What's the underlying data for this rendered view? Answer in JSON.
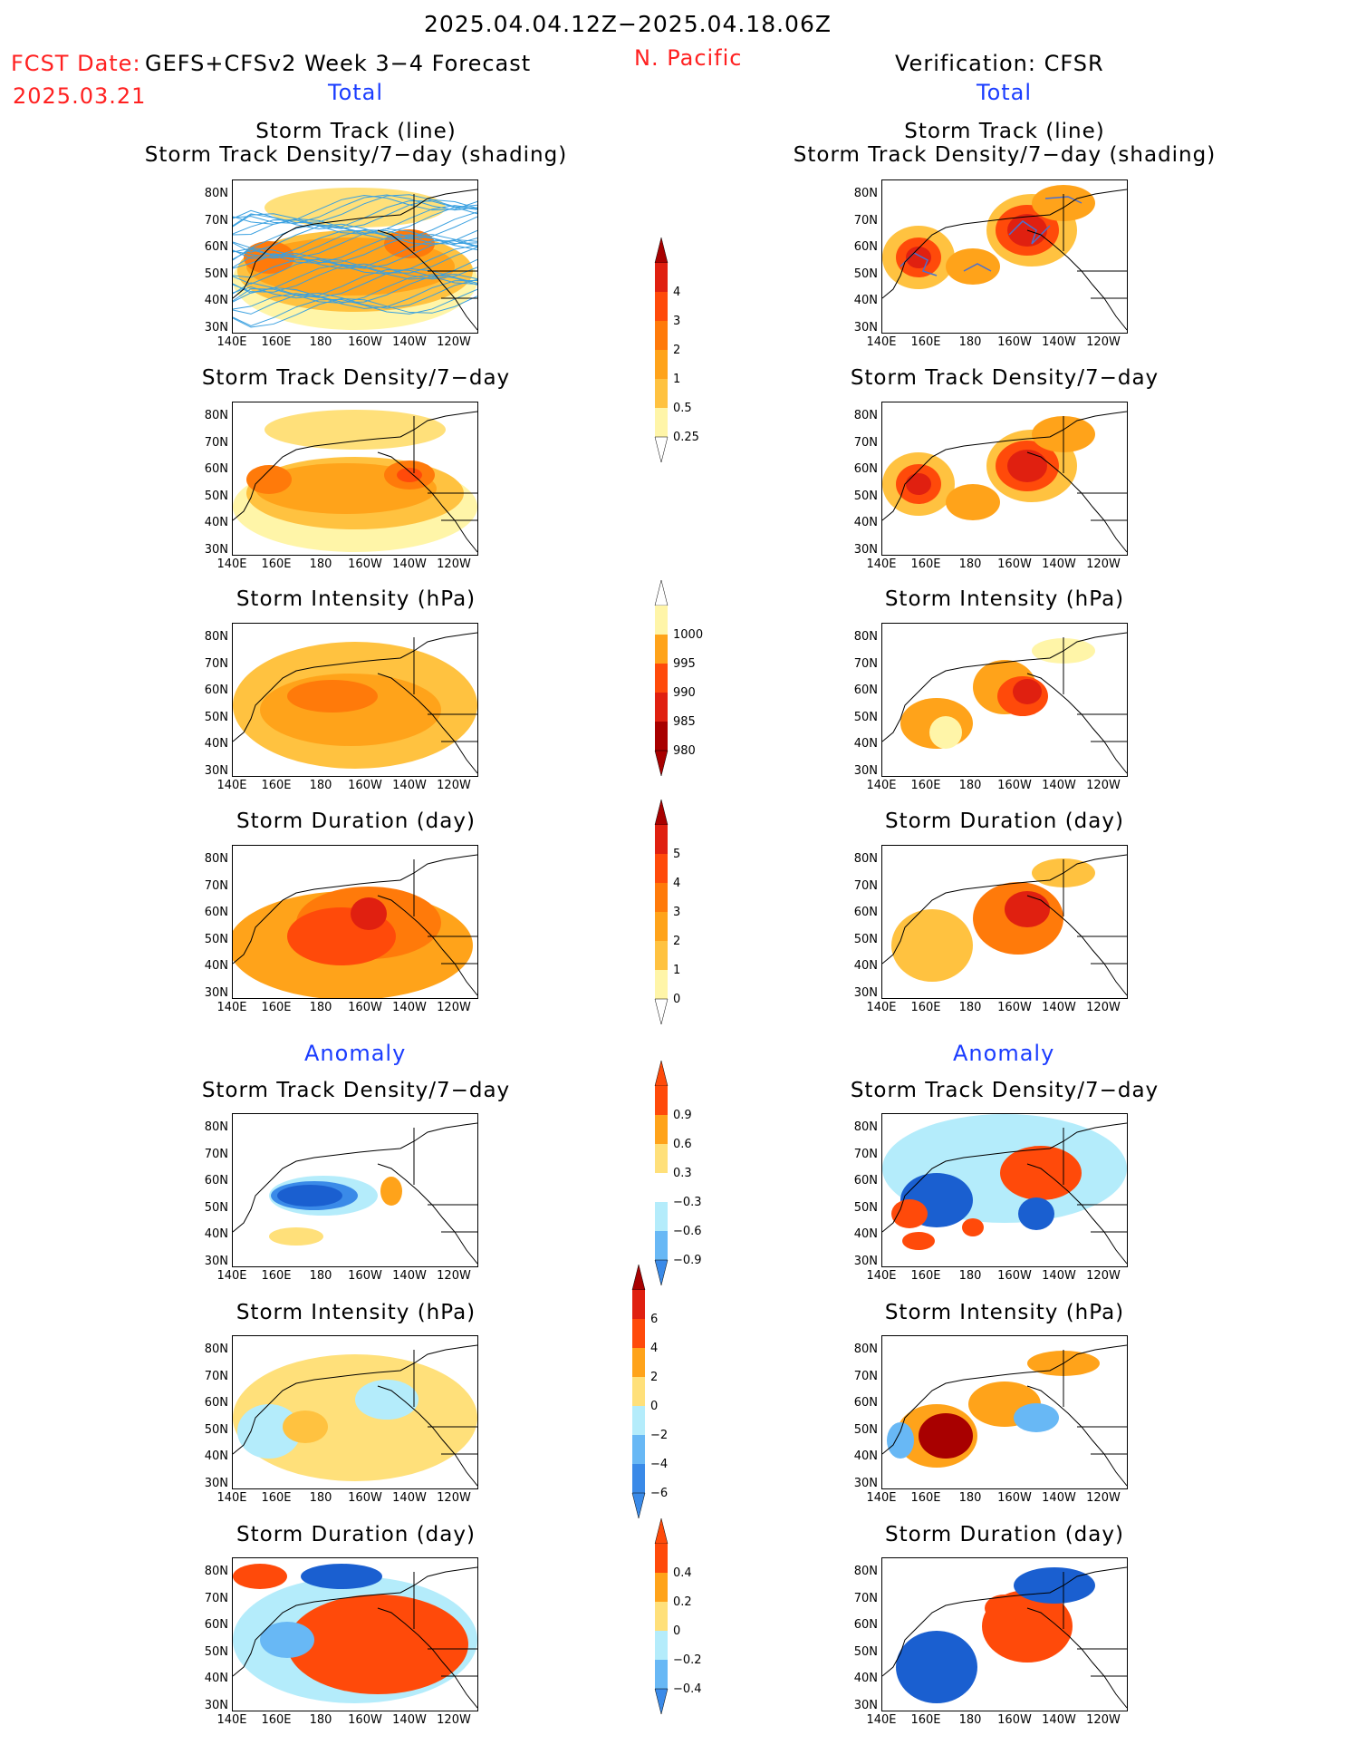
{
  "header": {
    "title": "2025.04.04.12Z−2025.04.18.06Z",
    "fcst_label": "FCST Date:",
    "fcst_model": "GEFS+CFSv2 Week 3−4 Forecast",
    "fcst_date": "2025.03.21",
    "region": "N. Pacific",
    "verification": "Verification: CFSR"
  },
  "sections": {
    "total_left": "Total",
    "total_right": "Total",
    "anomaly_left": "Anomaly",
    "anomaly_right": "Anomaly"
  },
  "panel_titles": {
    "track_line": "Storm Track (line)",
    "track_shading": "Storm Track Density/7−day (shading)",
    "density": "Storm Track Density/7−day",
    "intensity": "Storm Intensity (hPa)",
    "duration": "Storm Duration (day)"
  },
  "axes": {
    "lat_labels": [
      "80N",
      "70N",
      "60N",
      "50N",
      "40N",
      "30N"
    ],
    "lon_labels": [
      "140E",
      "160E",
      "180",
      "160W",
      "140W",
      "120W"
    ]
  },
  "colors": {
    "yellow_light": "#fff5a8",
    "yellow": "#ffe07a",
    "orange_light": "#ffc240",
    "orange": "#ffa31a",
    "orange_dark": "#ff7a0a",
    "red_orange": "#ff4a0a",
    "red": "#e02010",
    "dark_red": "#a80000",
    "blue_light": "#b4ecfb",
    "blue_mid": "#68b8f5",
    "blue": "#3a8ae8",
    "blue_dark": "#1a5fd0",
    "track_line": "#3aa0e0"
  },
  "colorbars": {
    "density_total": [
      "4",
      "3",
      "2",
      "1",
      "0.5",
      "0.25"
    ],
    "intensity_total": [
      "1000",
      "995",
      "990",
      "985",
      "980"
    ],
    "duration_total": [
      "5",
      "4",
      "3",
      "2",
      "1",
      "0"
    ],
    "density_anom": [
      "0.9",
      "0.6",
      "0.3",
      "−0.3",
      "−0.6",
      "−0.9"
    ],
    "intensity_anom": [
      "6",
      "4",
      "2",
      "0",
      "−2",
      "−4",
      "−6"
    ],
    "duration_anom": [
      "0.4",
      "0.2",
      "0",
      "−0.2",
      "−0.4"
    ]
  },
  "chart_data": [
    {
      "type": "heatmap",
      "panel": "forecast-total-track",
      "title": "Storm Track (line) / Storm Track Density/7-day (shading)",
      "lon_range": [
        "140E",
        "120W"
      ],
      "lat_range": [
        "30N",
        "80N"
      ]
    },
    {
      "type": "heatmap",
      "panel": "verification-total-track",
      "title": "Storm Track (line) / Storm Track Density/7-day (shading)"
    },
    {
      "type": "heatmap",
      "panel": "forecast-total-density",
      "title": "Storm Track Density/7-day"
    },
    {
      "type": "heatmap",
      "panel": "verification-total-density",
      "title": "Storm Track Density/7-day"
    },
    {
      "type": "heatmap",
      "panel": "forecast-total-intensity",
      "title": "Storm Intensity (hPa)"
    },
    {
      "type": "heatmap",
      "panel": "verification-total-intensity",
      "title": "Storm Intensity (hPa)"
    },
    {
      "type": "heatmap",
      "panel": "forecast-total-duration",
      "title": "Storm Duration (day)"
    },
    {
      "type": "heatmap",
      "panel": "verification-total-duration",
      "title": "Storm Duration (day)"
    },
    {
      "type": "heatmap",
      "panel": "forecast-anomaly-density",
      "title": "Storm Track Density/7-day"
    },
    {
      "type": "heatmap",
      "panel": "verification-anomaly-density",
      "title": "Storm Track Density/7-day"
    },
    {
      "type": "heatmap",
      "panel": "forecast-anomaly-intensity",
      "title": "Storm Intensity (hPa)"
    },
    {
      "type": "heatmap",
      "panel": "verification-anomaly-intensity",
      "title": "Storm Intensity (hPa)"
    },
    {
      "type": "heatmap",
      "panel": "forecast-anomaly-duration",
      "title": "Storm Duration (day)"
    },
    {
      "type": "heatmap",
      "panel": "verification-anomaly-duration",
      "title": "Storm Duration (day)"
    }
  ]
}
